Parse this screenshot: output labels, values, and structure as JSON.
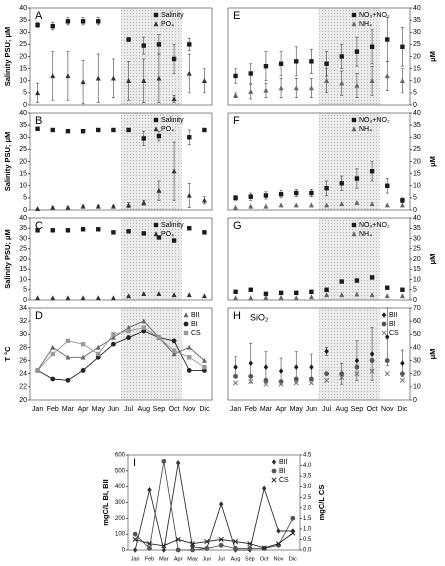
{
  "chart_data": [
    {
      "type": "scatter",
      "label": "A",
      "ylabel": "Salinity PSU; μM",
      "yaxis_side": "left",
      "ylim": [
        0,
        40
      ],
      "yticks": [
        0,
        5,
        10,
        15,
        20,
        25,
        30,
        35,
        40
      ],
      "series": [
        {
          "name": "Salinity",
          "marker": "square",
          "color": "#1a1a1a",
          "values": [
            33,
            32.5,
            34.5,
            34.5,
            34.5,
            null,
            27,
            24.5,
            25,
            19,
            25,
            null
          ],
          "errors": [
            1,
            1.5,
            1.5,
            1.5,
            1.5,
            null,
            0.8,
            3.5,
            4,
            6,
            2.5,
            null
          ]
        },
        {
          "name": "PO₄",
          "marker": "triangle",
          "color": "#333333",
          "values": [
            5,
            12,
            12,
            9.5,
            11,
            11,
            10,
            10,
            11,
            2.5,
            13,
            10
          ],
          "errors": [
            4,
            10,
            10,
            9,
            10,
            8,
            8,
            9,
            10,
            1.5,
            8,
            5
          ]
        }
      ]
    },
    {
      "type": "scatter",
      "label": "B",
      "ylabel": "Salinity PSU; μM",
      "yaxis_side": "left",
      "ylim": [
        0,
        40
      ],
      "yticks": [
        0,
        5,
        10,
        15,
        20,
        25,
        30,
        35,
        40
      ],
      "series": [
        {
          "name": "Salinity",
          "marker": "square",
          "color": "#1a1a1a",
          "values": [
            33.5,
            33,
            32.5,
            32.5,
            33,
            33,
            33,
            29.5,
            30.5,
            null,
            30,
            33
          ],
          "errors": [
            0.5,
            0.5,
            0.5,
            0.5,
            0.5,
            0.5,
            0.5,
            3,
            2,
            null,
            3,
            0.5
          ]
        },
        {
          "name": "PO₄",
          "marker": "triangle",
          "color": "#333333",
          "values": [
            0.5,
            1,
            1,
            1.5,
            1.5,
            1.5,
            2,
            3,
            8,
            16,
            6,
            4
          ],
          "errors": [
            0.3,
            0.5,
            0.5,
            0.5,
            0.5,
            0.5,
            1,
            1,
            4,
            12,
            5,
            1.5
          ]
        }
      ]
    },
    {
      "type": "scatter",
      "label": "C",
      "ylabel": "Salinity PSU; μM",
      "yaxis_side": "left",
      "ylim": [
        0,
        40
      ],
      "yticks": [
        0,
        5,
        10,
        15,
        20,
        25,
        30,
        35,
        40
      ],
      "series": [
        {
          "name": "Salinity",
          "marker": "square",
          "color": "#1a1a1a",
          "values": [
            34,
            34,
            34,
            34.5,
            34.5,
            33,
            33.5,
            32.5,
            30.5,
            29,
            35,
            33
          ]
        },
        {
          "name": "PO₄",
          "marker": "triangle",
          "color": "#333333",
          "values": [
            1,
            1,
            1,
            1,
            1,
            1,
            2,
            3,
            3,
            2.5,
            2.5,
            2
          ]
        }
      ]
    },
    {
      "type": "line",
      "label": "D",
      "ylabel": "T °C",
      "yaxis_side": "left",
      "ylim": [
        20,
        34
      ],
      "yticks": [
        20,
        22,
        24,
        26,
        28,
        30,
        32,
        34
      ],
      "categories": [
        "Jan",
        "Feb",
        "Mar",
        "Apr",
        "May",
        "Jun",
        "Jul",
        "Aug",
        "Sep",
        "Oct",
        "Nov",
        "Dic"
      ],
      "series": [
        {
          "name": "BII",
          "marker": "triangle",
          "color": "#666666",
          "values": [
            24.5,
            28,
            26.5,
            26.5,
            28,
            29.5,
            31,
            32,
            29.5,
            27,
            28,
            26
          ]
        },
        {
          "name": "BI",
          "marker": "circle",
          "color": "#222222",
          "values": [
            24.5,
            23.2,
            23,
            24.5,
            26.5,
            28.5,
            29.5,
            30.5,
            29.5,
            29,
            24.5,
            24.5
          ]
        },
        {
          "name": "CS",
          "marker": "square",
          "color": "#999999",
          "values": [
            24.5,
            27,
            29,
            28.5,
            27,
            30,
            30.5,
            31,
            29.5,
            27.5,
            26.5,
            25
          ]
        }
      ]
    },
    {
      "type": "scatter",
      "label": "E",
      "ylabel": "μM",
      "yaxis_side": "right",
      "ylim": [
        0,
        40
      ],
      "yticks": [
        0,
        5,
        10,
        15,
        20,
        25,
        30,
        35,
        40
      ],
      "series": [
        {
          "name": "NO₃+NO₂",
          "marker": "square",
          "color": "#1a1a1a",
          "values": [
            12,
            13,
            16,
            17,
            18,
            18,
            17,
            20,
            22,
            24,
            27,
            24
          ],
          "errors": [
            3,
            4,
            6,
            5,
            6,
            5,
            5,
            5,
            6,
            7,
            9,
            8
          ]
        },
        {
          "name": "NH₄",
          "marker": "triangle",
          "color": "#666666",
          "values": [
            4,
            5.5,
            6,
            7,
            7,
            7,
            10,
            9,
            8,
            10,
            12,
            10
          ],
          "errors": [
            1,
            3,
            3,
            4,
            4,
            4,
            5,
            5,
            5,
            6,
            6,
            5
          ]
        }
      ]
    },
    {
      "type": "scatter",
      "label": "F",
      "ylabel": "μM",
      "yaxis_side": "right",
      "ylim": [
        0,
        40
      ],
      "yticks": [
        0,
        5,
        10,
        15,
        20,
        25,
        30,
        35,
        40
      ],
      "series": [
        {
          "name": "NO₃+NO₂",
          "marker": "square",
          "color": "#1a1a1a",
          "values": [
            5,
            5.5,
            6,
            6.5,
            7,
            7,
            9,
            11,
            13,
            16,
            10,
            4
          ],
          "errors": [
            1,
            1.5,
            1.5,
            1.5,
            1.5,
            1.5,
            3,
            3,
            4,
            4,
            3,
            1
          ]
        },
        {
          "name": "NH₄",
          "marker": "triangle",
          "color": "#666666",
          "values": [
            1,
            1.5,
            1.5,
            2,
            2,
            2,
            2,
            2.5,
            3,
            2.5,
            2,
            2
          ]
        }
      ]
    },
    {
      "type": "scatter",
      "label": "G",
      "ylabel": "μM",
      "yaxis_side": "right",
      "ylim": [
        0,
        40
      ],
      "yticks": [
        0,
        5,
        10,
        15,
        20,
        25,
        30,
        35,
        40
      ],
      "series": [
        {
          "name": "NO₃+NO₂",
          "marker": "square",
          "color": "#1a1a1a",
          "values": [
            4,
            5,
            3,
            3.5,
            3.5,
            4,
            5,
            9,
            9.5,
            11,
            6,
            5
          ]
        },
        {
          "name": "NH₄",
          "marker": "triangle",
          "color": "#666666",
          "values": [
            1,
            1,
            1.2,
            1.2,
            1,
            1.5,
            2.5,
            2.5,
            2.8,
            2.5,
            2,
            2
          ]
        }
      ]
    },
    {
      "type": "scatter",
      "label": "H",
      "annotation": "SiO₂",
      "ylabel": "μM",
      "yaxis_side": "right",
      "ylim": [
        0,
        70
      ],
      "yticks": [
        0,
        10,
        20,
        30,
        40,
        50,
        60,
        70
      ],
      "categories": [
        "Jan",
        "Feb",
        "Mar",
        "Apr",
        "May",
        "Jun",
        "Jul",
        "Aug",
        "Sep",
        "Oct",
        "Nov",
        "Dic"
      ],
      "series": [
        {
          "name": "BII",
          "marker": "diamond",
          "color": "#1a1a1a",
          "values": [
            25,
            28,
            25,
            22,
            25,
            25,
            37,
            20,
            30,
            35,
            48,
            28
          ],
          "errors": [
            8,
            15,
            12,
            10,
            12,
            10,
            3,
            8,
            15,
            20,
            22,
            10
          ]
        },
        {
          "name": "BI",
          "marker": "circle",
          "color": "#555555",
          "values": [
            18,
            18,
            15,
            14,
            16,
            16,
            20,
            20,
            25,
            30,
            30,
            20
          ]
        },
        {
          "name": "CS",
          "marker": "x",
          "color": "#777777",
          "values": [
            13,
            14,
            12,
            12,
            13,
            13,
            15,
            17,
            20,
            22,
            20,
            15
          ]
        }
      ]
    },
    {
      "type": "line",
      "label": "I",
      "ylabel": "mgC/L BI, BII",
      "y2label": "mgC/L CS",
      "yaxis_side": "left",
      "ylim": [
        0,
        600
      ],
      "yticks": [
        0,
        100,
        200,
        300,
        400,
        500,
        600
      ],
      "y2lim": [
        0,
        4.5
      ],
      "y2ticks": [
        {
          "value": 0,
          "label": "0.0"
        },
        0.5,
        {
          "value": 1,
          "label": "1.0"
        },
        1.5,
        {
          "value": 2,
          "label": "2.0"
        },
        2.5,
        {
          "value": 3,
          "label": "3.0"
        },
        3.5,
        {
          "value": 4,
          "label": "4.0"
        },
        4.5
      ],
      "categories": [
        "Jan",
        "Feb",
        "Mar",
        "Apr",
        "May",
        "Jun",
        "Jul",
        "Aug",
        "Sep",
        "Oct",
        "Nov",
        "Dic"
      ],
      "series": [
        {
          "name": "BII",
          "marker": "diamond",
          "color": "#333333",
          "values": [
            0,
            380,
            0,
            550,
            20,
            10,
            290,
            0,
            0,
            390,
            120,
            120
          ]
        },
        {
          "name": "BI",
          "marker": "circle",
          "color": "#555555",
          "values": [
            100,
            10,
            560,
            0,
            0,
            10,
            30,
            10,
            10,
            10,
            30,
            200
          ]
        },
        {
          "name": "CS",
          "marker": "x",
          "color": "#222222",
          "axis": "y2",
          "values": [
            0.5,
            0.3,
            0.2,
            0.5,
            0.3,
            0.4,
            0.5,
            0.4,
            0.3,
            0.1,
            0.3,
            0.8
          ]
        }
      ]
    }
  ]
}
